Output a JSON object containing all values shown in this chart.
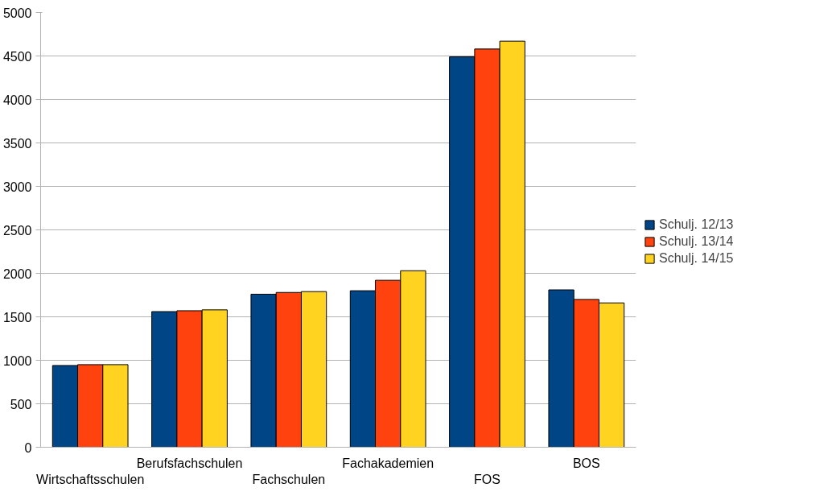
{
  "chart_data": {
    "type": "bar",
    "categories": [
      "Wirtschaftsschulen",
      "Berufsfachschulen",
      "Fachschulen",
      "Fachakademien",
      "FOS",
      "BOS"
    ],
    "series": [
      {
        "name": "Schulj. 12/13",
        "color": "#004586",
        "values": [
          940,
          1560,
          1760,
          1800,
          4490,
          1810
        ]
      },
      {
        "name": "Schulj. 13/14",
        "color": "#ff420e",
        "values": [
          950,
          1570,
          1780,
          1920,
          4580,
          1700
        ]
      },
      {
        "name": "Schulj. 14/15",
        "color": "#ffd320",
        "values": [
          950,
          1580,
          1790,
          2030,
          4670,
          1660
        ]
      }
    ],
    "ylim": [
      0,
      5000
    ],
    "yticks": [
      0,
      500,
      1000,
      1500,
      2000,
      2500,
      3000,
      3500,
      4000,
      4500,
      5000
    ],
    "grid": "y",
    "legend": "right"
  }
}
